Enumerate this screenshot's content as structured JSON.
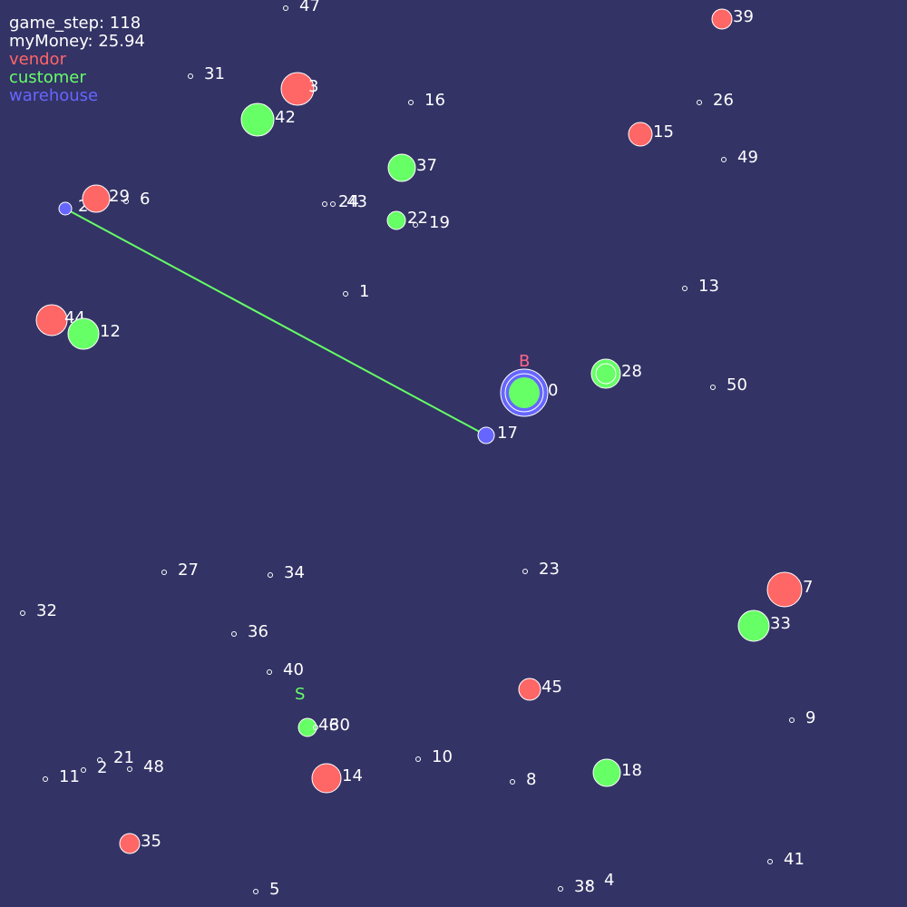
{
  "hud": {
    "game_step": "game_step: 118",
    "money": "myMoney: 25.94",
    "legend": [
      {
        "key": "vendor",
        "label": "vendor",
        "color": "#ff6666"
      },
      {
        "key": "customer",
        "label": "customer",
        "color": "#66ff66"
      },
      {
        "key": "warehouse",
        "label": "warehouse",
        "color": "#6666ff"
      }
    ]
  },
  "colors": {
    "background": "#333366",
    "vendor": "#ff6666",
    "customer": "#66ff66",
    "warehouse": "#6666ff",
    "route": "#66ff66",
    "node_outline": "#ffffff"
  },
  "markers": {
    "buyer": {
      "text": "B",
      "color": "#ff6688",
      "node": "0"
    },
    "seller": {
      "text": "S",
      "color": "#66ff66",
      "node": "46"
    }
  },
  "route": {
    "from": "20",
    "to": "17"
  },
  "nodes": [
    {
      "id": "47",
      "type": "empty"
    },
    {
      "id": "39",
      "type": "vendor"
    },
    {
      "id": "31",
      "type": "empty"
    },
    {
      "id": "3",
      "type": "vendor"
    },
    {
      "id": "42",
      "type": "customer"
    },
    {
      "id": "16",
      "type": "empty"
    },
    {
      "id": "26",
      "type": "empty"
    },
    {
      "id": "15",
      "type": "vendor"
    },
    {
      "id": "49",
      "type": "empty"
    },
    {
      "id": "37",
      "type": "customer"
    },
    {
      "id": "20",
      "type": "warehouse"
    },
    {
      "id": "29",
      "type": "vendor"
    },
    {
      "id": "6",
      "type": "empty"
    },
    {
      "id": "24",
      "type": "empty"
    },
    {
      "id": "43",
      "type": "empty"
    },
    {
      "id": "22",
      "type": "customer"
    },
    {
      "id": "19",
      "type": "empty"
    },
    {
      "id": "1",
      "type": "empty"
    },
    {
      "id": "13",
      "type": "empty"
    },
    {
      "id": "44",
      "type": "vendor"
    },
    {
      "id": "12",
      "type": "customer"
    },
    {
      "id": "0",
      "type": "customer_active"
    },
    {
      "id": "28",
      "type": "customer"
    },
    {
      "id": "50",
      "type": "empty"
    },
    {
      "id": "17",
      "type": "warehouse"
    },
    {
      "id": "27",
      "type": "empty"
    },
    {
      "id": "34",
      "type": "empty"
    },
    {
      "id": "23",
      "type": "empty"
    },
    {
      "id": "7",
      "type": "vendor"
    },
    {
      "id": "32",
      "type": "empty"
    },
    {
      "id": "33",
      "type": "customer"
    },
    {
      "id": "36",
      "type": "empty"
    },
    {
      "id": "40",
      "type": "empty"
    },
    {
      "id": "45",
      "type": "vendor"
    },
    {
      "id": "9",
      "type": "empty"
    },
    {
      "id": "46",
      "type": "customer"
    },
    {
      "id": "30",
      "type": "empty"
    },
    {
      "id": "21",
      "type": "empty"
    },
    {
      "id": "10",
      "type": "empty"
    },
    {
      "id": "11",
      "type": "empty"
    },
    {
      "id": "2",
      "type": "empty"
    },
    {
      "id": "48",
      "type": "empty"
    },
    {
      "id": "14",
      "type": "vendor"
    },
    {
      "id": "8",
      "type": "empty"
    },
    {
      "id": "18",
      "type": "customer"
    },
    {
      "id": "35",
      "type": "vendor"
    },
    {
      "id": "41",
      "type": "empty"
    },
    {
      "id": "5",
      "type": "empty"
    },
    {
      "id": "38",
      "type": "empty"
    },
    {
      "id": "4",
      "type": "empty"
    }
  ]
}
